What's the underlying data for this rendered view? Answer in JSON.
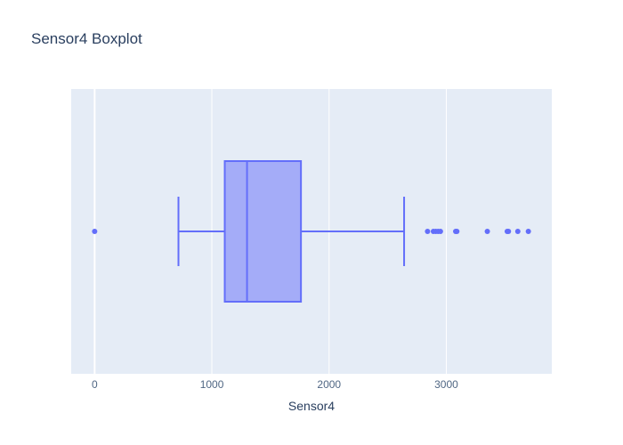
{
  "chart_data": {
    "type": "box",
    "title": "Sensor4 Boxplot",
    "xlabel": "Sensor4",
    "ylabel": "",
    "orientation": "horizontal",
    "xlim": [
      -200,
      3900
    ],
    "xticks": [
      0,
      1000,
      2000,
      3000
    ],
    "tick_labels": [
      "0",
      "1000",
      "2000",
      "3000"
    ],
    "grid": true,
    "series": [
      {
        "name": "Sensor4",
        "lower_whisker": 715,
        "q1": 1110,
        "median": 1300,
        "q3": 1760,
        "upper_whisker": 2640,
        "outliers": [
          0,
          2840,
          2890,
          2910,
          2930,
          2950,
          3080,
          3090,
          3350,
          3520,
          3530,
          3610,
          3700
        ]
      }
    ],
    "colors": {
      "plot_bg": "#e5ecf6",
      "grid": "#ffffff",
      "box_line": "#636efa",
      "box_fill": "#a4acf8",
      "text": "#2a3f5f",
      "tick_text": "#506784"
    }
  }
}
